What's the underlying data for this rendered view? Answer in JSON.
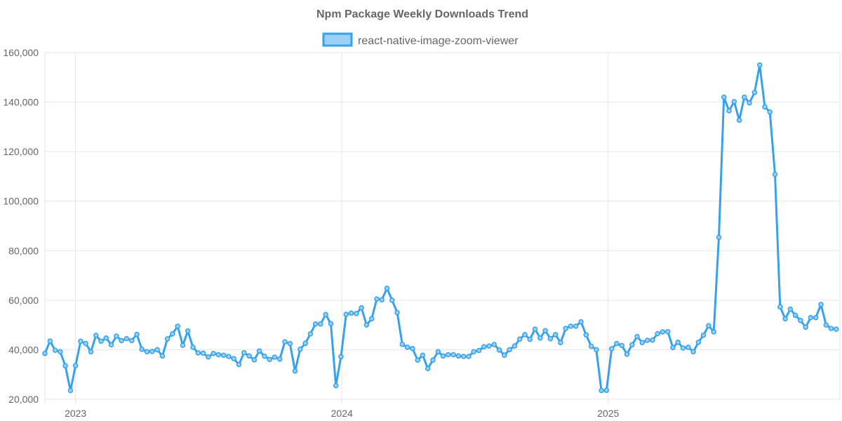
{
  "chart_data": {
    "type": "line",
    "title": "Npm Package Weekly Downloads Trend",
    "legend": {
      "placement": "top-center"
    },
    "series_color": "#36a2eb",
    "series_fill": "#9ad0f5",
    "xlabel": "",
    "ylabel": "",
    "ylim": [
      20000,
      160000
    ],
    "yticks": [
      20000,
      40000,
      60000,
      80000,
      100000,
      120000,
      140000,
      160000
    ],
    "ytick_labels": [
      "20,000",
      "40,000",
      "60,000",
      "80,000",
      "100,000",
      "120,000",
      "140,000",
      "160,000"
    ],
    "xlim": [
      2022.885,
      2025.87
    ],
    "xticks": [
      2023,
      2024,
      2025
    ],
    "xtick_labels": [
      "2023",
      "2024",
      "2025"
    ],
    "series": [
      {
        "name": "react-native-image-zoom-viewer",
        "start": 2022.885,
        "step": 0.01917,
        "values": [
          38500,
          43500,
          39800,
          39200,
          33500,
          23500,
          33600,
          43400,
          42500,
          39200,
          45800,
          43400,
          44700,
          42000,
          45500,
          43700,
          44500,
          43700,
          46200,
          40200,
          39200,
          39300,
          40000,
          37500,
          44400,
          46400,
          49500,
          41800,
          47600,
          41000,
          38700,
          38600,
          37100,
          38500,
          38000,
          37800,
          37300,
          36400,
          34000,
          38800,
          37500,
          35900,
          39500,
          37400,
          36100,
          37000,
          36200,
          43200,
          42500,
          31400,
          40200,
          42600,
          46400,
          50400,
          50400,
          54200,
          50500,
          25500,
          37200,
          54300,
          54800,
          54600,
          56900,
          50000,
          52500,
          60500,
          60200,
          64800,
          60000,
          55000,
          42200,
          41000,
          40500,
          35800,
          37800,
          32400,
          35800,
          39200,
          37500,
          38000,
          38000,
          37500,
          37300,
          37300,
          39200,
          39700,
          41200,
          41500,
          42100,
          39900,
          37800,
          40000,
          41500,
          44300,
          46100,
          44200,
          48300,
          44700,
          47700,
          44500,
          46100,
          42900,
          48600,
          49500,
          49500,
          51300,
          46000,
          41400,
          40000,
          23500,
          23600,
          40400,
          42500,
          41700,
          38200,
          42000,
          45300,
          42900,
          43800,
          43900,
          46500,
          47200,
          47300,
          40900,
          43000,
          40700,
          41000,
          39200,
          43000,
          45900,
          49700,
          47200,
          85400,
          142000,
          136500,
          140200,
          132700,
          142000,
          139700,
          143900,
          155000,
          138100,
          136000,
          110800,
          57300,
          52500,
          56400,
          53900,
          51800,
          49100,
          53000,
          53000,
          58300,
          50000,
          48600,
          48300
        ]
      }
    ]
  }
}
